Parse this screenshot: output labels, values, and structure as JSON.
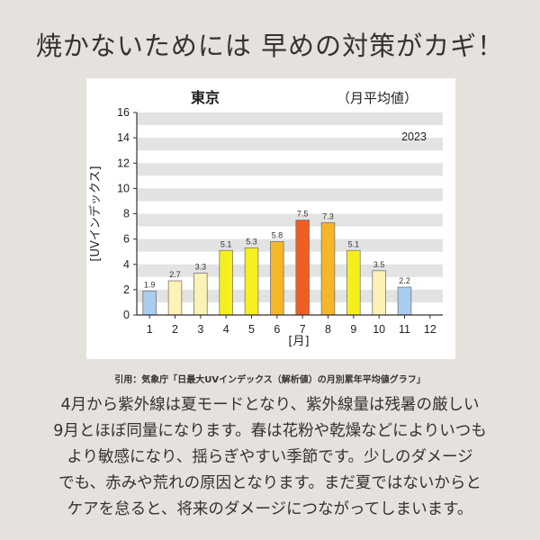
{
  "headline": "焼かないためには 早めの対策がカギ！",
  "chart_data": {
    "type": "bar",
    "title": "東京",
    "subtitle": "（月平均値）",
    "year_label": "2023",
    "ylabel": "[UVインデックス]",
    "xlabel": "[月]",
    "ylim": [
      0,
      16
    ],
    "yticks": [
      0,
      2,
      4,
      6,
      8,
      10,
      12,
      14,
      16
    ],
    "categories": [
      "1",
      "2",
      "3",
      "4",
      "5",
      "6",
      "7",
      "8",
      "9",
      "10",
      "11",
      "12"
    ],
    "values": [
      1.9,
      2.7,
      3.3,
      5.1,
      5.3,
      5.8,
      7.5,
      7.3,
      5.1,
      3.5,
      2.2,
      null
    ],
    "value_labels": [
      "1.9",
      "2.7",
      "3.3",
      "5.1",
      "5.3",
      "5.8",
      "7.5",
      "7.3",
      "5.1",
      "3.5",
      "2.2",
      ""
    ],
    "colors": [
      "#a8cdef",
      "#fbf2b6",
      "#fbf2b6",
      "#f6ef1e",
      "#f6ef1e",
      "#f5b627",
      "#ee5f22",
      "#f5b627",
      "#f6ef1e",
      "#fbf2b6",
      "#a8cdef",
      "#ffffff"
    ],
    "grid": true,
    "grid_style": "alternating horizontal bands"
  },
  "citation": "引用：気象庁「日最大UVインデックス（解析値）の月別累年平均値グラフ」",
  "body": {
    "lines": [
      "4月から紫外線は夏モードとなり、紫外線量は残暑の厳しい",
      "9月とほぼ同量になります。春は花粉や乾燥などによりいつも",
      "より敏感になり、揺らぎやすい季節です。少しのダメージ",
      "でも、赤みや荒れの原因となります。まだ夏ではないからと",
      "ケアを怠ると、将来のダメージにつながってしまいます。"
    ]
  }
}
